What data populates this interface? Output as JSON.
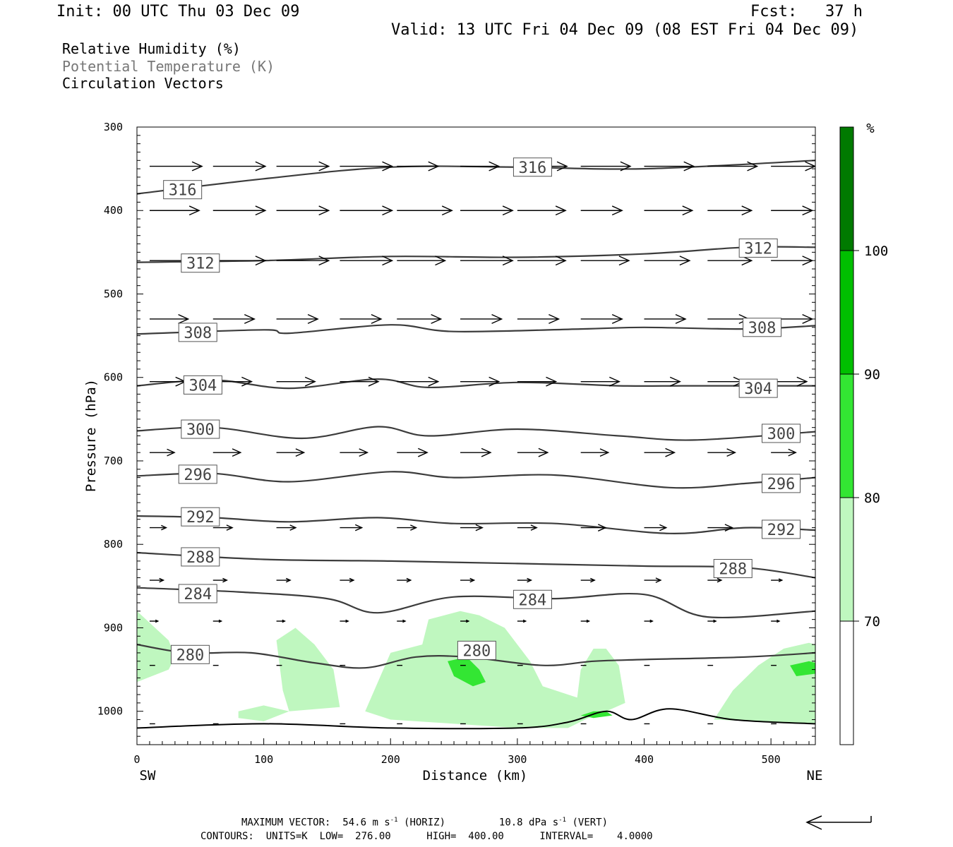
{
  "header": {
    "init": "Init: 00 UTC Thu 03 Dec 09",
    "fcst": "Fcst:   37 h",
    "valid": "Valid: 13 UTC Fri 04 Dec 09 (08 EST Fri 04 Dec 09)"
  },
  "fields": {
    "rh": "Relative Humidity (%)",
    "theta": "Potential Temperature (K)",
    "vectors": "Circulation Vectors"
  },
  "footer": {
    "max_vector_label": "MAXIMUM VECTOR:",
    "horiz_value": "54.6 m s",
    "horiz_unit": "(HORIZ)",
    "vert_value": "10.8 dPa s",
    "vert_unit": "(VERT)",
    "exponent": "-1",
    "contours": "CONTOURS:  UNITS=K  LOW=  276.00      HIGH=  400.00      INTERVAL=    4.0000"
  },
  "colors": {
    "theta_line": "#3c3c3c",
    "terrain": "#000000",
    "rh_70": "#bff7bf",
    "rh_80": "#33e633",
    "rh_90": "#00bf00",
    "rh_100": "#007a00"
  },
  "chart_data": {
    "type": "line",
    "xlabel": "Distance (km)",
    "ylabel": "Pressure (hPa)",
    "xlim": [
      0,
      535
    ],
    "ylim": [
      1040,
      300
    ],
    "x_ticks": [
      0,
      100,
      200,
      300,
      400,
      500
    ],
    "y_ticks": [
      300,
      400,
      500,
      600,
      700,
      800,
      900,
      1000
    ],
    "x_left_label": "SW",
    "x_right_label": "NE",
    "colorbar": {
      "unit": "%",
      "levels": [
        70,
        80,
        90,
        100
      ],
      "colors": [
        "#ffffff",
        "#bff7bf",
        "#33e633",
        "#00bf00",
        "#007a00"
      ]
    },
    "isentropes": [
      {
        "value": 316,
        "x": [
          0,
          100,
          200,
          300,
          400,
          535
        ],
        "p": [
          380,
          362,
          348,
          348,
          350,
          340
        ]
      },
      {
        "value": 312,
        "x": [
          0,
          100,
          200,
          300,
          400,
          480,
          535
        ],
        "p": [
          462,
          460,
          455,
          456,
          452,
          444,
          444
        ]
      },
      {
        "value": 308,
        "x": [
          0,
          100,
          120,
          200,
          250,
          350,
          400,
          480,
          535
        ],
        "p": [
          548,
          543,
          547,
          537,
          545,
          542,
          540,
          542,
          538
        ]
      },
      {
        "value": 304,
        "x": [
          0,
          60,
          120,
          190,
          230,
          300,
          380,
          430,
          480,
          535
        ],
        "p": [
          610,
          603,
          613,
          602,
          612,
          606,
          610,
          610,
          610,
          610
        ]
      },
      {
        "value": 300,
        "x": [
          0,
          60,
          130,
          190,
          230,
          300,
          380,
          440,
          535
        ],
        "p": [
          664,
          660,
          673,
          659,
          670,
          662,
          670,
          675,
          665
        ]
      },
      {
        "value": 296,
        "x": [
          0,
          60,
          120,
          200,
          250,
          330,
          420,
          480,
          535
        ],
        "p": [
          718,
          715,
          725,
          713,
          720,
          717,
          732,
          727,
          720
        ]
      },
      {
        "value": 292,
        "x": [
          0,
          60,
          120,
          190,
          250,
          330,
          420,
          480,
          535
        ],
        "p": [
          766,
          768,
          773,
          768,
          775,
          775,
          787,
          780,
          783
        ]
      },
      {
        "value": 288,
        "x": [
          0,
          100,
          200,
          300,
          400,
          480,
          535
        ],
        "p": [
          810,
          818,
          820,
          823,
          826,
          828,
          840
        ]
      },
      {
        "value": 284,
        "x": [
          0,
          80,
          150,
          190,
          250,
          330,
          400,
          450,
          535
        ],
        "p": [
          852,
          857,
          865,
          882,
          863,
          865,
          860,
          887,
          880
        ]
      },
      {
        "value": 280,
        "x": [
          0,
          40,
          90,
          140,
          180,
          220,
          260,
          320,
          360,
          400,
          480,
          535
        ],
        "p": [
          920,
          930,
          930,
          942,
          948,
          935,
          935,
          945,
          940,
          938,
          935,
          930
        ]
      }
    ],
    "contour_labels": [
      {
        "value": 316,
        "x": 36,
        "p": 375
      },
      {
        "value": 316,
        "x": 312,
        "p": 348
      },
      {
        "value": 312,
        "x": 50,
        "p": 463
      },
      {
        "value": 312,
        "x": 490,
        "p": 445
      },
      {
        "value": 308,
        "x": 48,
        "p": 546
      },
      {
        "value": 308,
        "x": 493,
        "p": 540
      },
      {
        "value": 304,
        "x": 52,
        "p": 609
      },
      {
        "value": 304,
        "x": 490,
        "p": 613
      },
      {
        "value": 300,
        "x": 50,
        "p": 662
      },
      {
        "value": 300,
        "x": 508,
        "p": 667
      },
      {
        "value": 296,
        "x": 48,
        "p": 716
      },
      {
        "value": 296,
        "x": 508,
        "p": 727
      },
      {
        "value": 292,
        "x": 50,
        "p": 767
      },
      {
        "value": 292,
        "x": 508,
        "p": 782
      },
      {
        "value": 288,
        "x": 50,
        "p": 815
      },
      {
        "value": 288,
        "x": 470,
        "p": 829
      },
      {
        "value": 284,
        "x": 48,
        "p": 859
      },
      {
        "value": 284,
        "x": 312,
        "p": 866
      },
      {
        "value": 280,
        "x": 42,
        "p": 932
      },
      {
        "value": 280,
        "x": 268,
        "p": 927
      }
    ],
    "terrain": {
      "x": [
        0,
        100,
        200,
        300,
        340,
        370,
        390,
        420,
        470,
        535
      ],
      "p": [
        1020,
        1015,
        1020,
        1020,
        1013,
        1000,
        1010,
        997,
        1010,
        1015
      ]
    },
    "vector_rows": [
      {
        "p": 347,
        "u": [
          38,
          38,
          38,
          38,
          30,
          28,
          36,
          36,
          36,
          36,
          32
        ],
        "w": [
          0,
          0,
          0,
          0,
          0,
          0,
          0,
          0,
          0,
          0,
          0
        ]
      },
      {
        "p": 400,
        "u": [
          36,
          38,
          38,
          38,
          40,
          38,
          35,
          30,
          35,
          32,
          30
        ],
        "w": [
          0,
          0,
          0,
          0,
          0,
          0,
          0,
          0,
          0,
          0,
          0
        ]
      },
      {
        "p": 460,
        "u": [
          36,
          38,
          38,
          38,
          35,
          38,
          35,
          35,
          33,
          32,
          30
        ],
        "w": [
          0,
          0,
          0,
          0,
          0,
          0,
          0,
          0,
          0,
          0,
          0
        ]
      },
      {
        "p": 530,
        "u": [
          28,
          30,
          30,
          30,
          32,
          30,
          30,
          30,
          30,
          30,
          30
        ],
        "w": [
          0,
          0,
          0,
          0,
          0,
          0,
          0,
          0,
          0,
          0,
          0
        ]
      },
      {
        "p": 605,
        "u": [
          26,
          28,
          28,
          28,
          30,
          28,
          28,
          28,
          26,
          26,
          26
        ],
        "w": [
          0,
          0,
          0,
          0,
          0,
          0,
          0,
          0,
          0,
          0,
          0
        ]
      },
      {
        "p": 690,
        "u": [
          18,
          20,
          20,
          20,
          22,
          22,
          22,
          20,
          22,
          20,
          18
        ],
        "w": [
          0,
          0,
          0,
          0,
          0,
          0,
          0,
          0,
          0,
          0,
          0
        ]
      },
      {
        "p": 780,
        "u": [
          12,
          14,
          14,
          16,
          14,
          16,
          14,
          18,
          16,
          18,
          16
        ],
        "w": [
          0,
          0,
          0,
          0,
          0,
          0,
          0,
          0,
          0,
          0,
          0
        ]
      },
      {
        "p": 843,
        "u": [
          10,
          10,
          10,
          10,
          10,
          10,
          10,
          10,
          12,
          10,
          8
        ],
        "w": [
          0,
          0,
          0,
          0,
          0,
          0,
          0,
          0,
          0,
          0,
          0
        ]
      },
      {
        "p": 892,
        "u": [
          6,
          6,
          6,
          6,
          6,
          6,
          6,
          6,
          6,
          6,
          6
        ],
        "w": [
          0,
          0,
          0,
          0,
          0,
          0,
          0,
          0,
          0,
          0,
          0
        ]
      },
      {
        "p": 945,
        "u": [
          4,
          4,
          4,
          4,
          4,
          4,
          4,
          4,
          4,
          4,
          4
        ],
        "w": [
          0,
          0,
          0,
          0,
          0,
          0,
          0,
          0,
          0,
          0,
          0
        ]
      },
      {
        "p": 1015,
        "u": [
          4,
          4,
          4,
          4,
          4,
          4,
          4,
          4,
          4,
          4,
          4
        ],
        "w": [
          0,
          0,
          0,
          0,
          0,
          0,
          0,
          0,
          0,
          0,
          0
        ]
      }
    ],
    "vector_x": [
      10,
      60,
      110,
      160,
      205,
      255,
      300,
      350,
      400,
      450,
      500
    ],
    "rh_regions": [
      {
        "level": 70,
        "points": [
          [
            0,
            880
          ],
          [
            25,
            915
          ],
          [
            30,
            935
          ],
          [
            25,
            950
          ],
          [
            0,
            965
          ]
        ]
      },
      {
        "level": 70,
        "points": [
          [
            110,
            915
          ],
          [
            125,
            900
          ],
          [
            140,
            920
          ],
          [
            155,
            950
          ],
          [
            160,
            995
          ],
          [
            120,
            1000
          ],
          [
            115,
            975
          ]
        ]
      },
      {
        "level": 70,
        "points": [
          [
            180,
            1000
          ],
          [
            200,
            930
          ],
          [
            225,
            920
          ],
          [
            230,
            890
          ],
          [
            255,
            880
          ],
          [
            270,
            885
          ],
          [
            290,
            900
          ],
          [
            310,
            940
          ],
          [
            320,
            970
          ],
          [
            350,
            985
          ],
          [
            360,
            1005
          ],
          [
            340,
            1020
          ],
          [
            300,
            1020
          ],
          [
            250,
            1015
          ],
          [
            200,
            1010
          ]
        ]
      },
      {
        "level": 70,
        "points": [
          [
            345,
            1010
          ],
          [
            350,
            950
          ],
          [
            360,
            925
          ],
          [
            370,
            925
          ],
          [
            380,
            945
          ],
          [
            385,
            990
          ],
          [
            370,
            1000
          ]
        ]
      },
      {
        "level": 70,
        "points": [
          [
            455,
            1010
          ],
          [
            470,
            975
          ],
          [
            490,
            945
          ],
          [
            510,
            925
          ],
          [
            530,
            918
          ],
          [
            535,
            920
          ],
          [
            535,
            1015
          ]
        ]
      },
      {
        "level": 70,
        "points": [
          [
            80,
            1000
          ],
          [
            100,
            993
          ],
          [
            120,
            1000
          ],
          [
            100,
            1012
          ],
          [
            80,
            1008
          ]
        ]
      },
      {
        "level": 80,
        "points": [
          [
            245,
            940
          ],
          [
            260,
            935
          ],
          [
            270,
            950
          ],
          [
            275,
            965
          ],
          [
            265,
            970
          ],
          [
            250,
            958
          ]
        ]
      },
      {
        "level": 80,
        "points": [
          [
            515,
            945
          ],
          [
            530,
            940
          ],
          [
            535,
            942
          ],
          [
            535,
            955
          ],
          [
            520,
            958
          ]
        ]
      },
      {
        "level": 80,
        "points": [
          [
            350,
            1005
          ],
          [
            360,
            1000
          ],
          [
            370,
            1000
          ],
          [
            375,
            1005
          ],
          [
            360,
            1008
          ]
        ]
      }
    ]
  }
}
